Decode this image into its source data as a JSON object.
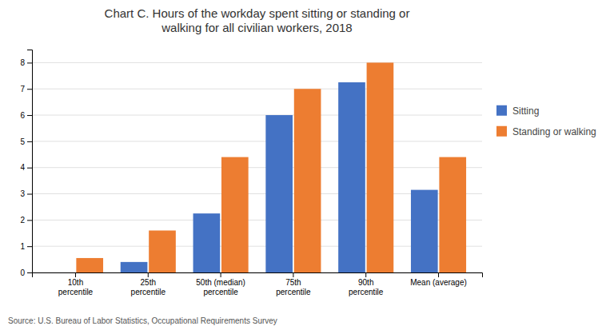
{
  "chart_data": {
    "type": "bar",
    "title": "Chart C. Hours of the workday spent sitting or standing or\nwalking for all civilian workers, 2018",
    "categories": [
      "10th\npercentile",
      "25th\npercentile",
      "50th (median)\npercentile",
      "75th\npercentile",
      "90th\npercentile",
      "Mean (average)"
    ],
    "series": [
      {
        "name": "Sitting",
        "color": "#4472C4",
        "values": [
          0.0,
          0.4,
          2.25,
          6.0,
          7.25,
          3.15
        ]
      },
      {
        "name": "Standing or walking",
        "color": "#ED7D31",
        "values": [
          0.55,
          1.6,
          4.4,
          7.0,
          8.0,
          4.4
        ]
      }
    ],
    "ylim": [
      0,
      8.5
    ],
    "yticks": [
      0,
      1,
      2,
      3,
      4,
      5,
      6,
      7,
      8
    ],
    "grid": true,
    "legend": "right",
    "annotations": [
      "Source: U.S. Bureau of Labor Statistics, Occupational Requirements Survey"
    ]
  }
}
